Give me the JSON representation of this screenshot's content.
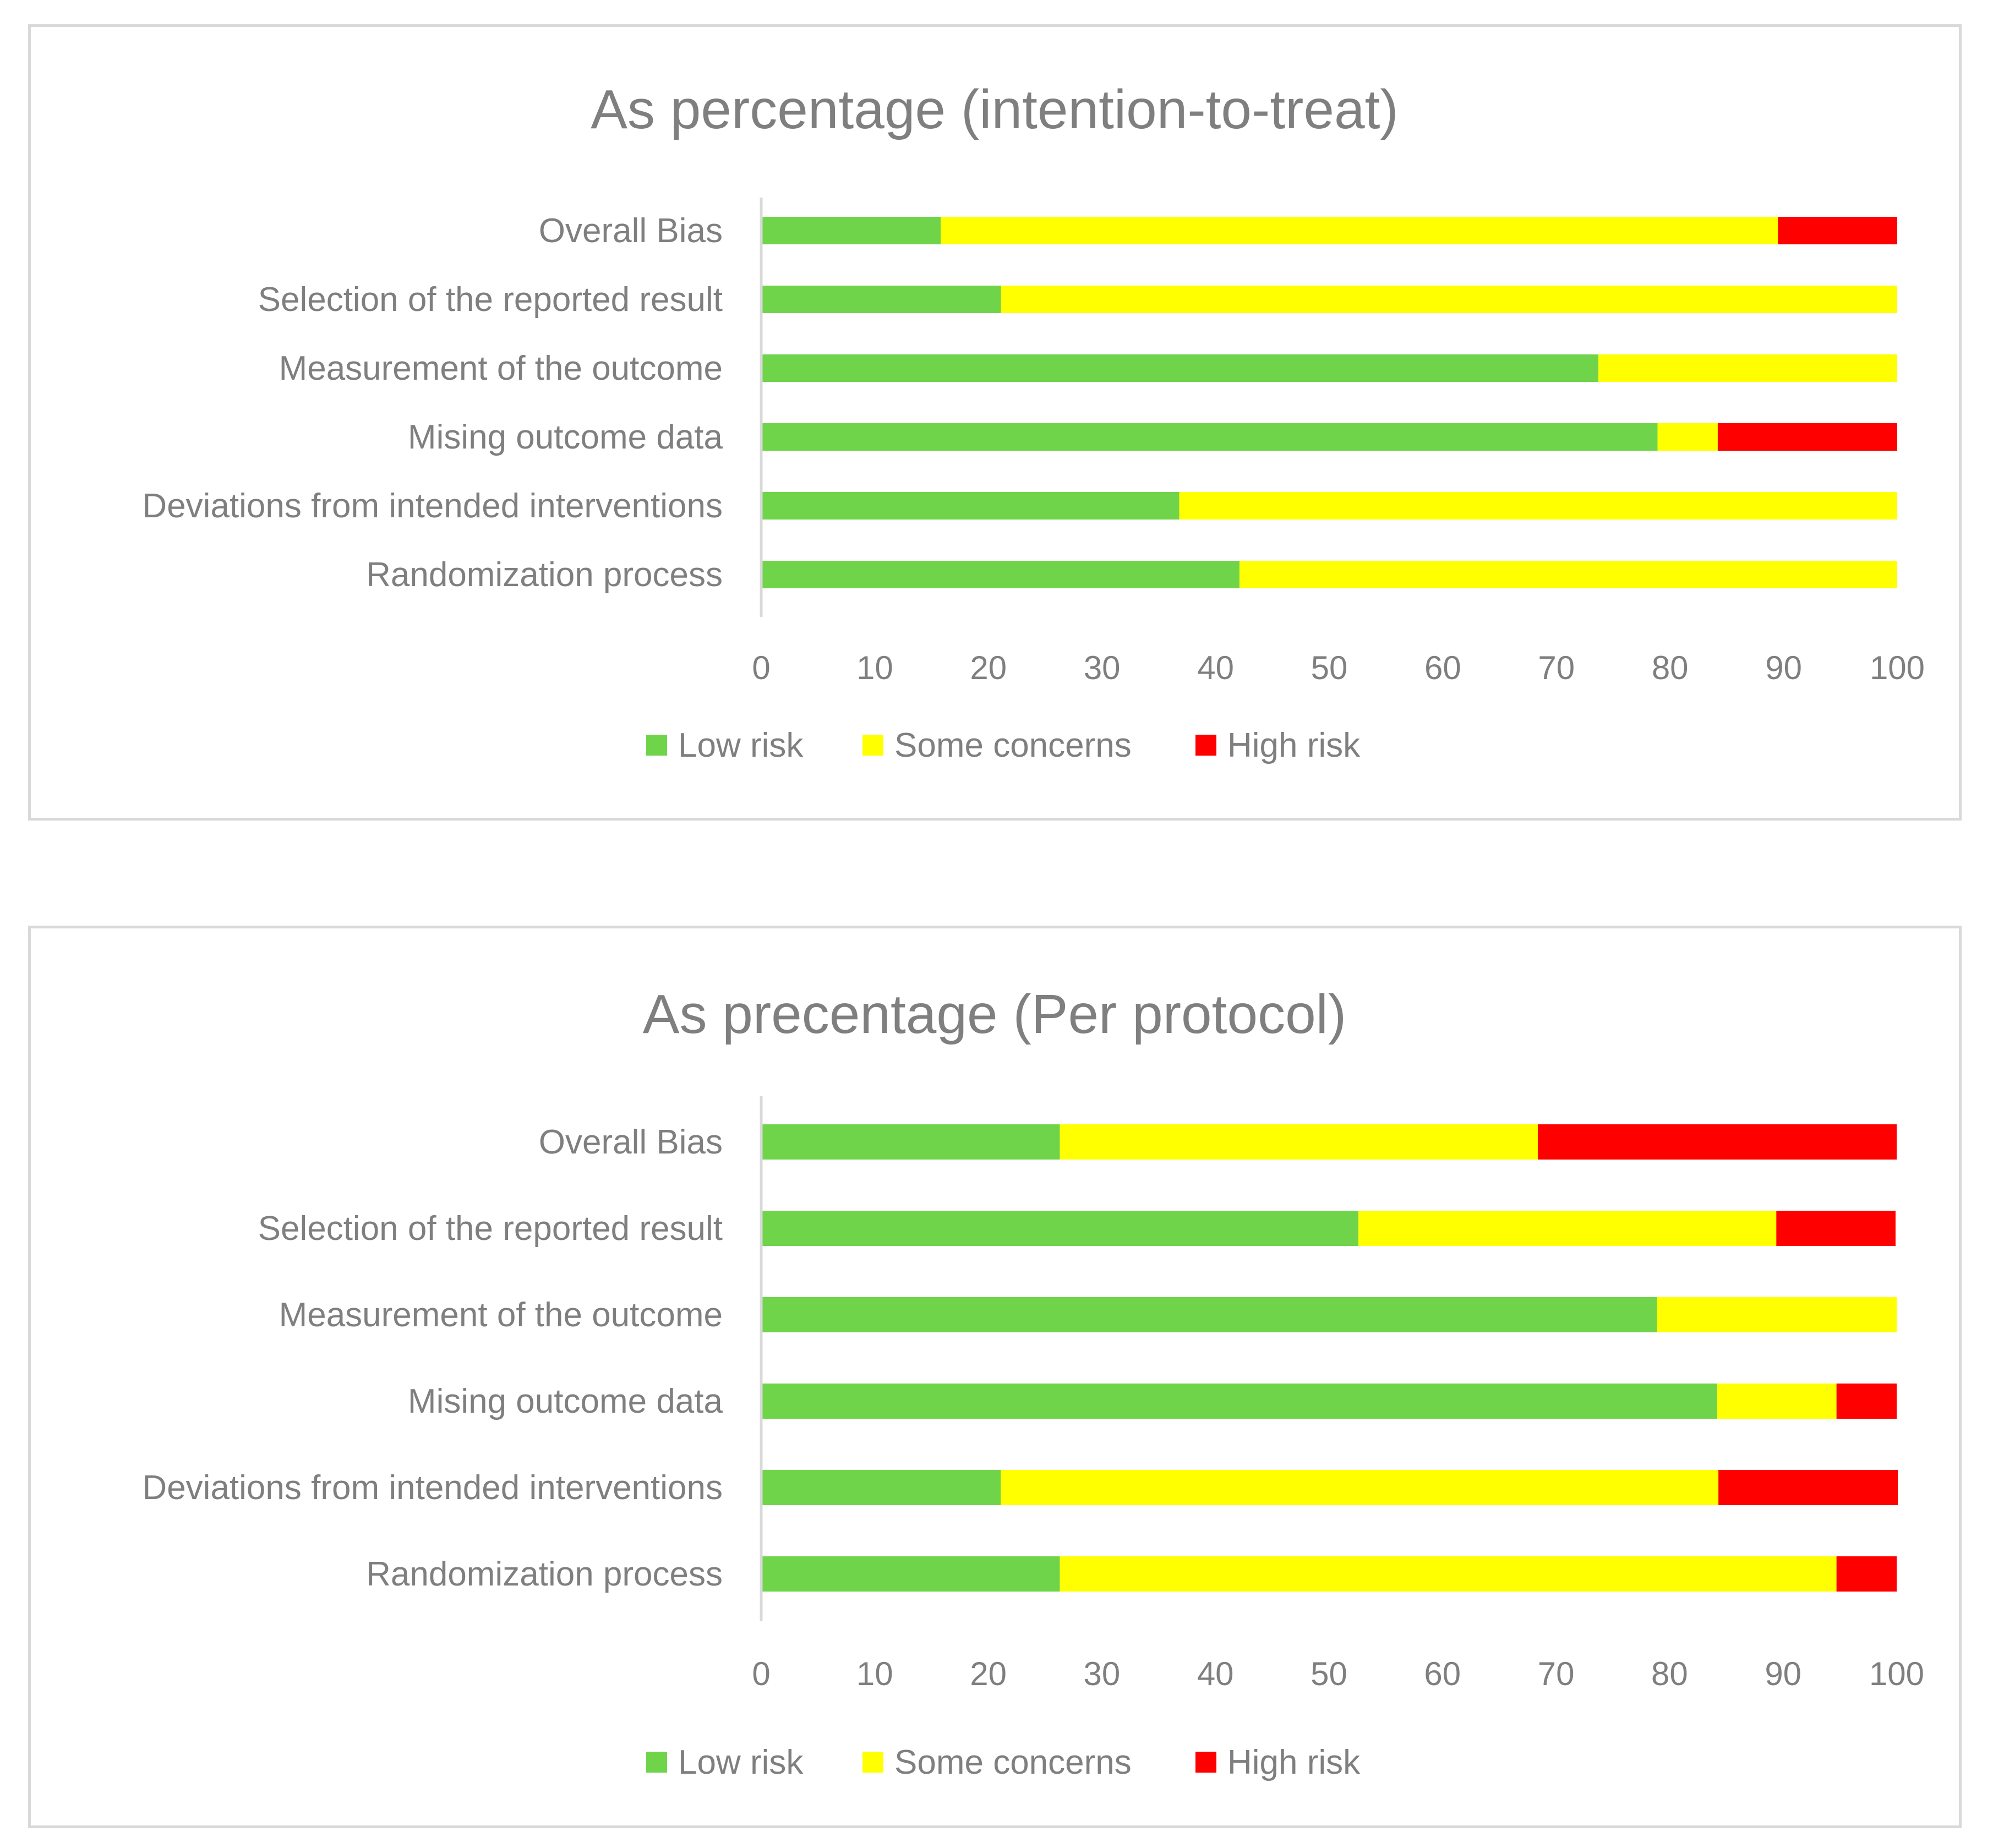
{
  "colors": {
    "low": "#70d44b",
    "some": "#ffff00",
    "high": "#ff0000",
    "text": "#7f7f7f",
    "axis": "#d9d9d9"
  },
  "chart_data": [
    {
      "type": "bar",
      "orientation": "horizontal",
      "stacked": true,
      "title": "As percentage (intention-to-treat)",
      "categories": [
        "Overall Bias",
        "Selection of the reported result",
        "Measurement of the outcome",
        "Mising outcome data",
        "Deviations from intended interventions",
        "Randomization process"
      ],
      "series": [
        {
          "name": "Low risk",
          "values": [
            15.8,
            21.1,
            73.7,
            78.9,
            36.8,
            42.1
          ]
        },
        {
          "name": "Some concerns",
          "values": [
            73.7,
            78.9,
            26.3,
            5.3,
            63.2,
            57.9
          ]
        },
        {
          "name": "High risk",
          "values": [
            10.5,
            0,
            0,
            15.8,
            0,
            0
          ]
        }
      ],
      "xticks": [
        "0",
        "10",
        "20",
        "30",
        "40",
        "50",
        "60",
        "70",
        "80",
        "90",
        "100"
      ],
      "xlim": [
        0,
        100
      ],
      "legend": [
        "Low risk",
        "Some concerns",
        "High risk"
      ],
      "legend_position": "bottom",
      "grid": false
    },
    {
      "type": "bar",
      "orientation": "horizontal",
      "stacked": true,
      "title": "As precentage (Per protocol)",
      "categories": [
        "Overall Bias",
        "Selection of the reported result",
        "Measurement of the outcome",
        "Mising outcome data",
        "Deviations from intended interventions",
        "Randomization process"
      ],
      "series": [
        {
          "name": "Low risk",
          "values": [
            26.3,
            52.6,
            78.9,
            84.2,
            21.1,
            26.3
          ]
        },
        {
          "name": "Some concerns",
          "values": [
            42.1,
            36.8,
            21.1,
            10.5,
            63.2,
            68.4
          ]
        },
        {
          "name": "High risk",
          "values": [
            31.6,
            10.5,
            0,
            5.3,
            15.8,
            5.3
          ]
        }
      ],
      "xticks": [
        "0",
        "10",
        "20",
        "30",
        "40",
        "50",
        "60",
        "70",
        "80",
        "90",
        "100"
      ],
      "xlim": [
        0,
        100
      ],
      "legend": [
        "Low risk",
        "Some concerns",
        "High risk"
      ],
      "legend_position": "bottom",
      "grid": false
    }
  ]
}
